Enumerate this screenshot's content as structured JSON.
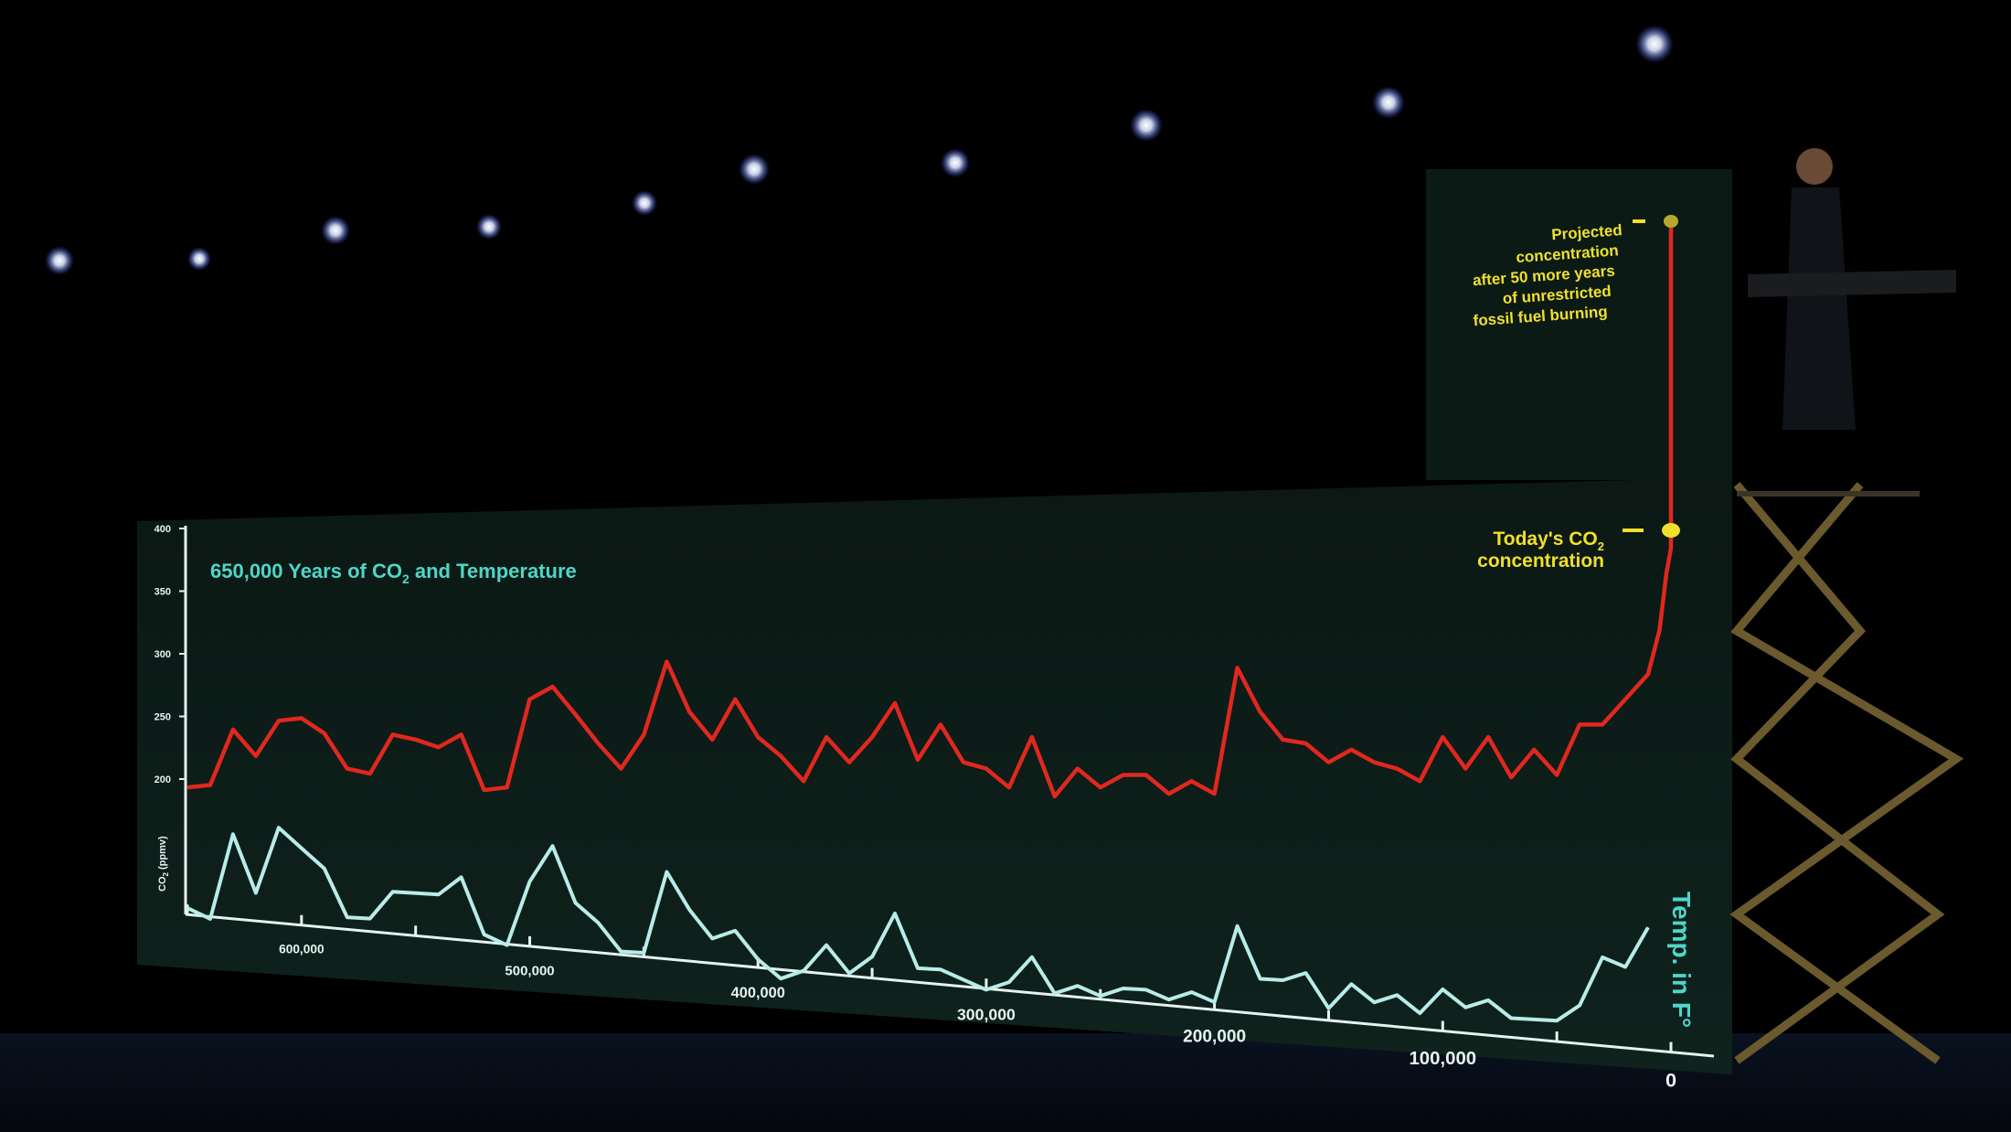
{
  "chart_data": {
    "type": "line",
    "title": "650,000 Years of CO",
    "title_sub": "2",
    "title_rest": " and Temperature",
    "ylabel": "CO",
    "ylabel_sub": "2",
    "ylabel_rest": " (ppmv)",
    "y2label": "Temp. in F°",
    "ylim": [
      180,
      400
    ],
    "y_ticks": [
      "400",
      "350",
      "300",
      "250",
      "200"
    ],
    "x_ticks": [
      "600,000",
      "500,000",
      "400,000",
      "300,000",
      "200,000",
      "100,000",
      "0"
    ],
    "xlim": [
      650000,
      0
    ],
    "today_label_line1": "Today's CO",
    "today_label_sub": "2",
    "today_label_line2": "concentration",
    "projected_label": [
      "Projected",
      "concentration",
      "after 50 more years",
      "of unrestricted",
      "fossil fuel burning"
    ],
    "colors": {
      "co2": "#e0281e",
      "temp": "#b8ece8",
      "title": "#4fd6c8",
      "annotation": "#f0e02a",
      "axis": "#e6f2ef",
      "panel": "#0c1a16"
    },
    "series": [
      {
        "key": "co2",
        "x": [
          650000,
          640000,
          630000,
          620000,
          610000,
          600000,
          590000,
          580000,
          570000,
          560000,
          550000,
          540000,
          530000,
          520000,
          510000,
          500000,
          490000,
          480000,
          470000,
          460000,
          450000,
          440000,
          430000,
          420000,
          410000,
          400000,
          390000,
          380000,
          370000,
          360000,
          350000,
          340000,
          330000,
          320000,
          310000,
          300000,
          290000,
          280000,
          270000,
          260000,
          250000,
          240000,
          230000,
          220000,
          210000,
          200000,
          190000,
          180000,
          170000,
          160000,
          150000,
          140000,
          130000,
          120000,
          110000,
          100000,
          90000,
          80000,
          70000,
          60000,
          50000,
          40000,
          30000,
          20000,
          10000,
          5000,
          2000,
          0,
          -2000
        ],
        "values": [
          190,
          192,
          236,
          215,
          243,
          245,
          233,
          205,
          201,
          232,
          228,
          222,
          232,
          188,
          190,
          260,
          270,
          248,
          225,
          205,
          232,
          290,
          250,
          228,
          260,
          230,
          215,
          195,
          230,
          210,
          230,
          257,
          212,
          240,
          210,
          205,
          190,
          230,
          183,
          205,
          190,
          200,
          200,
          185,
          195,
          185,
          285,
          250,
          228,
          225,
          210,
          220,
          210,
          205,
          195,
          230,
          205,
          230,
          198,
          220,
          200,
          240,
          240,
          260,
          280,
          315,
          360,
          380,
          540
        ]
      },
      {
        "key": "temp",
        "x": [
          650000,
          640000,
          630000,
          620000,
          610000,
          600000,
          590000,
          580000,
          570000,
          560000,
          550000,
          540000,
          530000,
          520000,
          510000,
          500000,
          490000,
          480000,
          470000,
          460000,
          450000,
          440000,
          430000,
          420000,
          410000,
          400000,
          390000,
          380000,
          370000,
          360000,
          350000,
          340000,
          330000,
          320000,
          310000,
          300000,
          290000,
          280000,
          270000,
          260000,
          250000,
          240000,
          230000,
          220000,
          210000,
          200000,
          190000,
          180000,
          170000,
          160000,
          150000,
          140000,
          130000,
          120000,
          110000,
          100000,
          90000,
          80000,
          70000,
          60000,
          50000,
          40000,
          30000,
          20000,
          10000
        ],
        "values": [
          -8,
          -9,
          0,
          -6,
          1,
          -1,
          -3,
          -8,
          -8,
          -5,
          -5,
          -5,
          -3,
          -9,
          -10,
          -3,
          1,
          -5,
          -7,
          -10,
          -10,
          -1,
          -5,
          -8,
          -7,
          -10,
          -12,
          -11,
          -8,
          -11,
          -9,
          -4,
          -10,
          -10,
          -11,
          -12,
          -11,
          -8,
          -12,
          -11,
          -12,
          -11,
          -11,
          -12,
          -11,
          -12,
          -3,
          -9,
          -9,
          -8,
          -12,
          -9,
          -11,
          -10,
          -12,
          -9,
          -11,
          -10,
          -12,
          -12,
          -12,
          -10,
          -4,
          -5,
          0
        ]
      }
    ]
  }
}
